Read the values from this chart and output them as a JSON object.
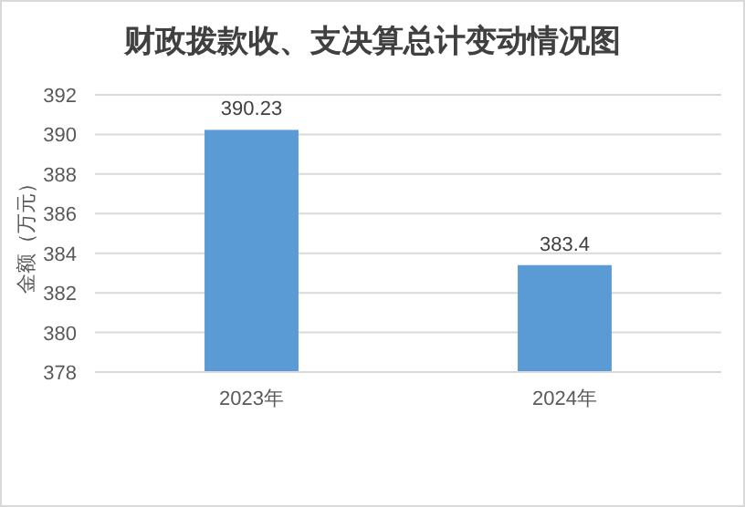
{
  "chart_data": {
    "type": "bar",
    "title": "财政拨款收、支决算总计变动情况图",
    "ylabel": "金额（万元）",
    "categories": [
      "2023年",
      "2024年"
    ],
    "values": [
      390.23,
      383.4
    ],
    "color": "#5b9bd5",
    "ylim": [
      378,
      392
    ],
    "yticks": [
      378,
      380,
      382,
      384,
      386,
      388,
      390,
      392
    ],
    "grid": "y",
    "data_labels": true
  }
}
